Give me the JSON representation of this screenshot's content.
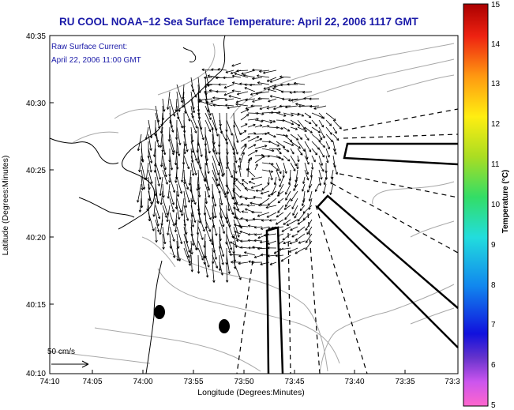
{
  "title": "RU COOL  NOAA−12  Sea Surface Temperature:  April 22, 2006 1117 GMT",
  "annotation": {
    "line1": "Raw Surface Current:",
    "line2": "April 22, 2006 11:00 GMT"
  },
  "axes": {
    "xlabel": "Longitude (Degrees:Minutes)",
    "ylabel": "Latitude (Degrees:Minutes)",
    "x_ticks": [
      "74:10",
      "74:05",
      "74:00",
      "73:55",
      "73:50",
      "73:45",
      "73:40",
      "73:35",
      "73:3"
    ],
    "y_ticks": [
      "40:35",
      "40:30",
      "40:25",
      "40:20",
      "40:15",
      "40:10"
    ]
  },
  "scale_bar": {
    "label": "50 cm/s"
  },
  "colorbar": {
    "label": "Temperature (°C)",
    "ticks": [
      "15",
      "14",
      "13",
      "12",
      "11",
      "10",
      "9",
      "8",
      "7",
      "6",
      "5"
    ],
    "min": 5,
    "max": 15
  },
  "colors": {
    "title": "#1a1aa8",
    "annotation": "#1a1aa8",
    "land": "#ffffff",
    "water": "#ffffff",
    "contour": "#a0a0a0",
    "coast": "#000000"
  }
}
